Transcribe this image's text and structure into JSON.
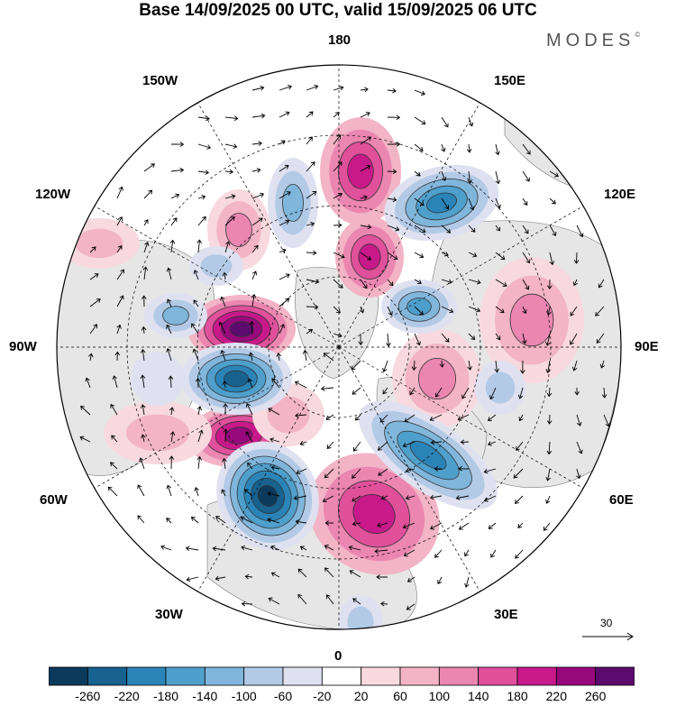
{
  "title": "Base 14/09/2025 00 UTC, valid 15/09/2025 06 UTC",
  "brand": {
    "name": "MODES",
    "mark": "©"
  },
  "grid_labels": {
    "top": "180",
    "bottom": "0",
    "left": "90W",
    "right": "90E",
    "upper_left_1": "150W",
    "upper_left_2": "120W",
    "upper_right_1": "150E",
    "upper_right_2": "120E",
    "lower_left_1": "60W",
    "lower_left_2": "30W",
    "lower_right_1": "60E",
    "lower_right_2": "30E"
  },
  "vector_reference": {
    "value": "30"
  },
  "colorbar": {
    "colors": [
      "#0b3a5c",
      "#17628f",
      "#2a84b8",
      "#4f9fcc",
      "#80b6dc",
      "#b2cae6",
      "#dfe1f0",
      "#ffffff",
      "#f7d9df",
      "#f2b4c6",
      "#eb86b1",
      "#e0509b",
      "#c8198a",
      "#98087d",
      "#5c0a6e"
    ],
    "labels": [
      "-260",
      "-220",
      "-180",
      "-140",
      "-100",
      "-60",
      "-20",
      "20",
      "60",
      "100",
      "140",
      "180",
      "220",
      "260"
    ]
  },
  "colors": {
    "neg_strong": "#17628f",
    "neg_weak": "#b2cae6",
    "pos_weak": "#f2b4c6",
    "pos_strong": "#c8198a",
    "land": "#e6e6e6"
  }
}
